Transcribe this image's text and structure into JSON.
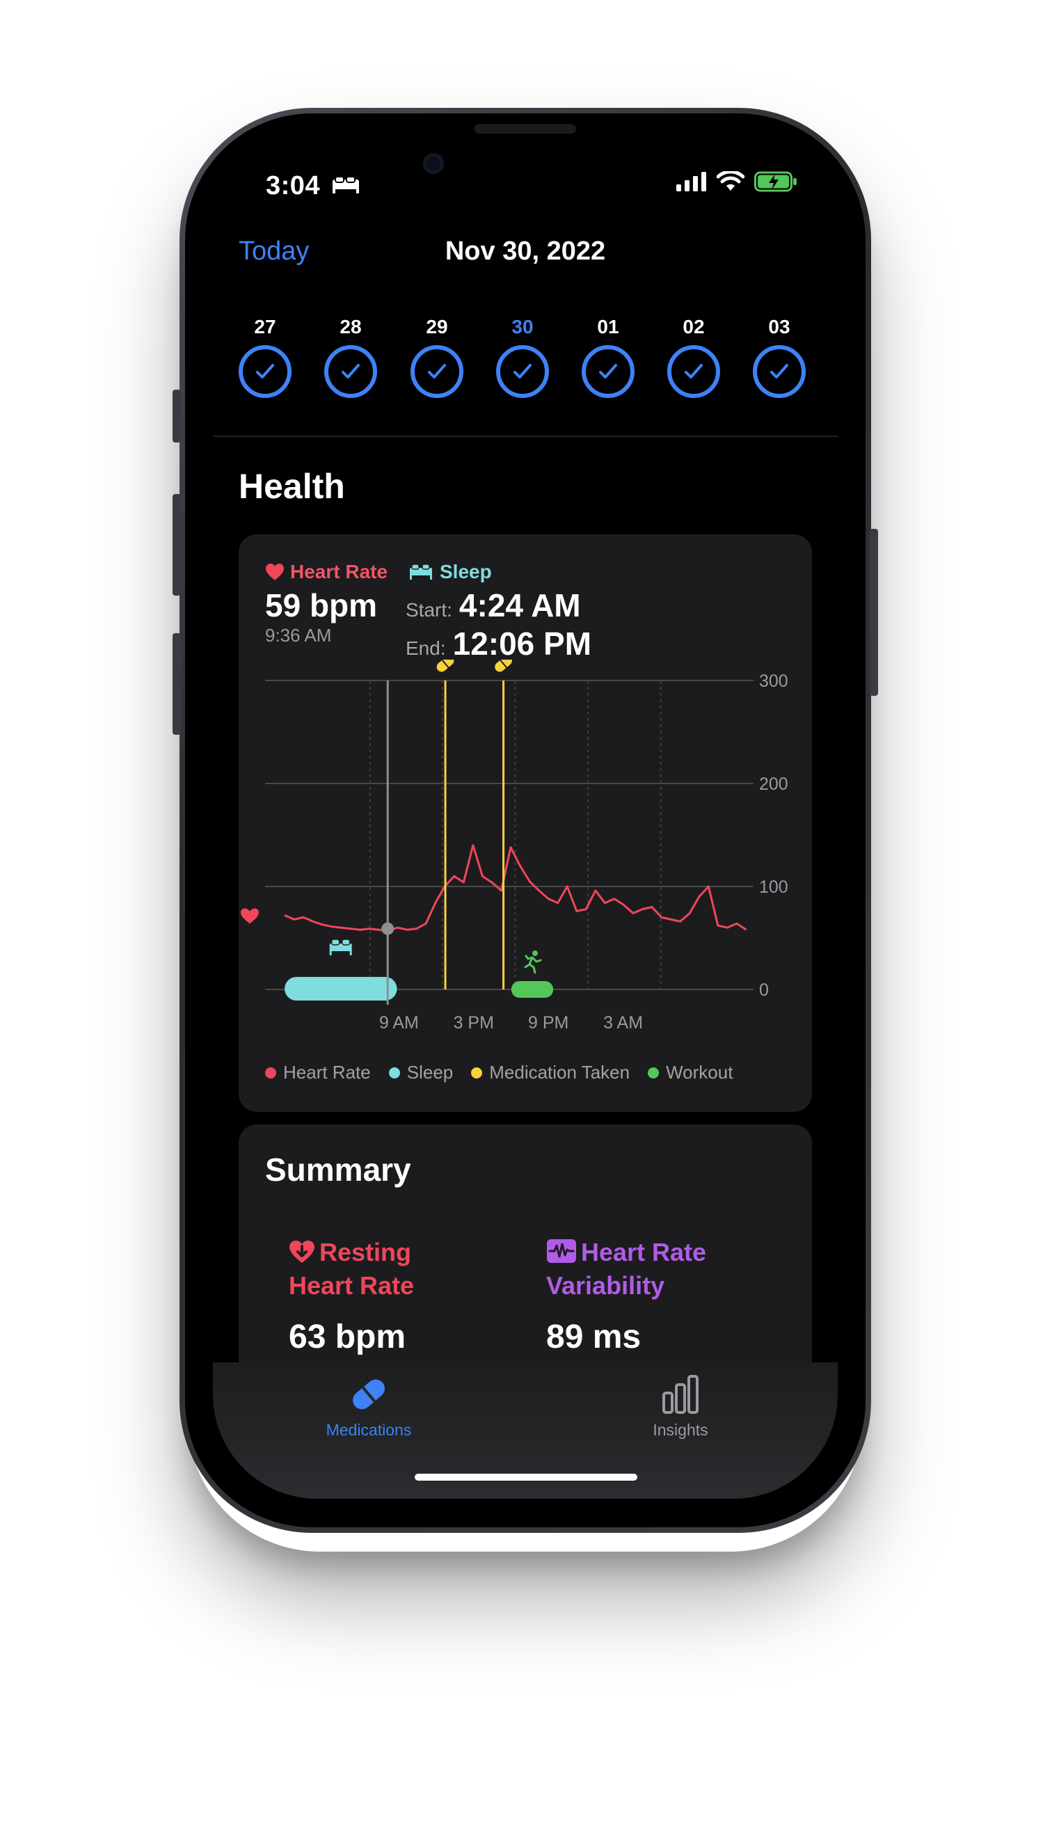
{
  "status_bar": {
    "time": "3:04"
  },
  "header": {
    "today_label": "Today",
    "date_title": "Nov 30, 2022"
  },
  "week": {
    "days": [
      {
        "num": "27",
        "selected": false
      },
      {
        "num": "28",
        "selected": false
      },
      {
        "num": "29",
        "selected": false
      },
      {
        "num": "30",
        "selected": true
      },
      {
        "num": "01",
        "selected": false
      },
      {
        "num": "02",
        "selected": false
      },
      {
        "num": "03",
        "selected": false
      }
    ]
  },
  "health": {
    "section_title": "Health",
    "heart_rate": {
      "label": "Heart Rate",
      "value": "59 bpm",
      "time": "9:36 AM"
    },
    "sleep": {
      "label": "Sleep",
      "start_label": "Start:",
      "start_time": "4:24 AM",
      "end_label": "End:",
      "end_time": "12:06 PM"
    },
    "legend": [
      "Heart Rate",
      "Sleep",
      "Medication Taken",
      "Workout"
    ]
  },
  "chart_data": {
    "type": "line",
    "x_tick_labels": [
      "9 AM",
      "3 PM",
      "9 PM",
      "3 AM"
    ],
    "y_tick_labels": [
      "300",
      "200",
      "100",
      "0"
    ],
    "ylim": [
      0,
      300
    ],
    "series": [
      {
        "name": "Heart Rate",
        "color": "#f0465c",
        "values": [
          72,
          68,
          70,
          66,
          63,
          61,
          60,
          59,
          58,
          59,
          58,
          57,
          60,
          58,
          59,
          64,
          84,
          100,
          110,
          104,
          140,
          110,
          104,
          96,
          138,
          120,
          105,
          96,
          88,
          84,
          100,
          76,
          78,
          96,
          84,
          88,
          82,
          74,
          78,
          80,
          70,
          68,
          66,
          74,
          90,
          100,
          62,
          60,
          64,
          58
        ]
      }
    ],
    "sleep_interval": {
      "start": "4:24 AM",
      "end": "12:06 PM"
    },
    "medication_times_fraction": [
      0.369,
      0.488
    ],
    "selected_point_fraction": 0.251,
    "workout_interval_fraction": [
      0.504,
      0.59
    ],
    "colors": {
      "heart_rate": "#f0465c",
      "sleep": "#7fdde0",
      "medication": "#f7d23d",
      "workout": "#54c759",
      "accent": "#3e82f7"
    }
  },
  "summary": {
    "title": "Summary",
    "resting": {
      "title_line1": "Resting",
      "title_line2": "Heart Rate",
      "value": "63 bpm",
      "color": "#f0465c"
    },
    "hrv": {
      "title_line1": "Heart Rate",
      "title_line2": "Variability",
      "value": "89 ms",
      "color": "#b15ce8"
    }
  },
  "tabbar": {
    "medications_label": "Medications",
    "insights_label": "Insights"
  }
}
